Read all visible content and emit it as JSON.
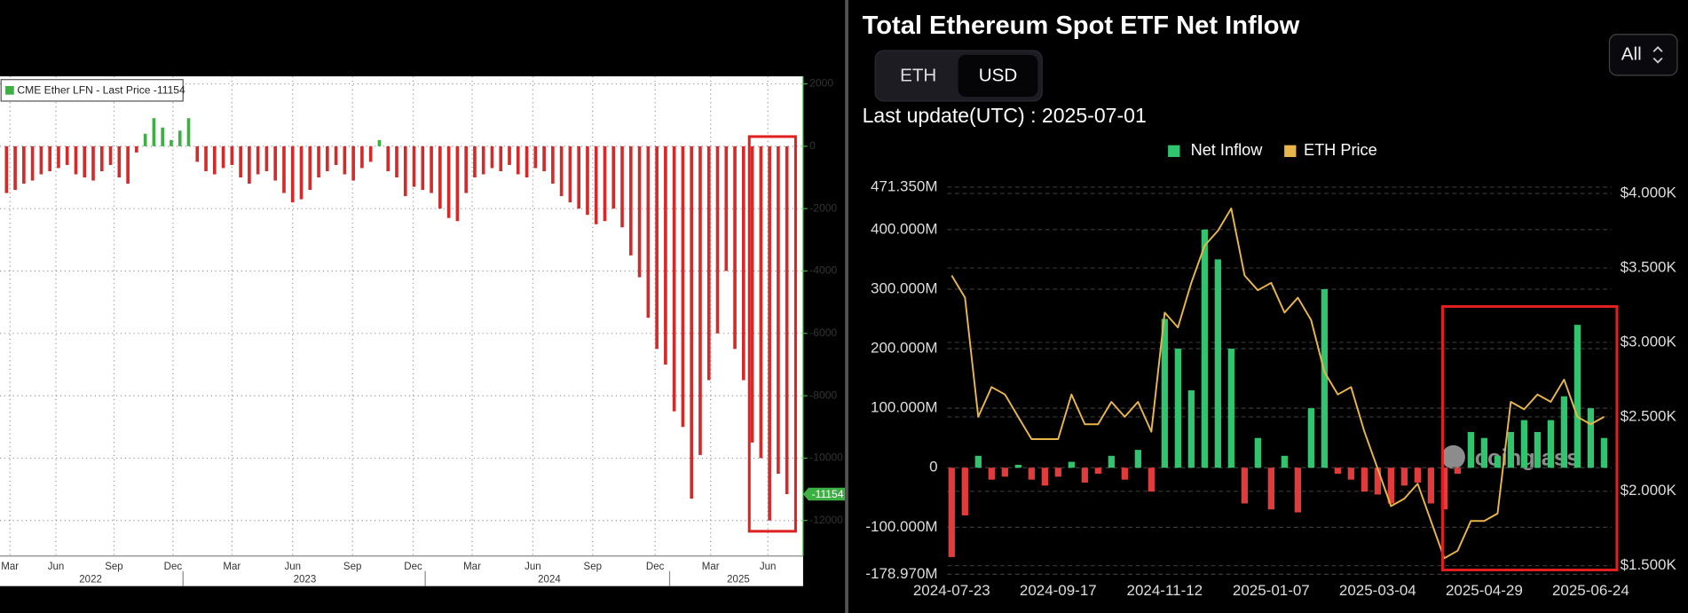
{
  "chart_data": [
    {
      "type": "bar",
      "legend": "CME Ether LFN - Last Price -11154",
      "values": [
        -1500,
        -1400,
        -1200,
        -1100,
        -900,
        -800,
        -700,
        -600,
        -900,
        -1000,
        -1100,
        -800,
        -600,
        -1000,
        -1200,
        -200,
        400,
        900,
        600,
        200,
        500,
        900,
        -500,
        -800,
        -900,
        -700,
        -600,
        -1000,
        -1200,
        -900,
        -800,
        -1100,
        -1500,
        -1800,
        -1700,
        -1400,
        -1000,
        -800,
        -600,
        -900,
        -1100,
        -700,
        -500,
        200,
        -800,
        -1000,
        -1600,
        -1300,
        -1400,
        -1500,
        -2000,
        -2300,
        -2400,
        -1500,
        -1000,
        -900,
        -700,
        -800,
        -600,
        -900,
        -1000,
        -700,
        -800,
        -1200,
        -1600,
        -1800,
        -2000,
        -2200,
        -2500,
        -2400,
        -2000,
        -2600,
        -3500,
        -4200,
        -5500,
        -6500,
        -7000,
        -8500,
        -9000,
        -11300,
        -9900,
        -7500,
        -6000,
        -4000,
        -6500,
        -7500,
        -9500,
        -10000,
        -12000,
        -10500,
        -11154
      ],
      "color": "#d42a2a",
      "positive_color": "#3cb043",
      "ylim": [
        -13138,
        2241
      ],
      "yticks": [
        2000,
        0,
        -2000,
        -4000,
        -6000,
        -8000,
        -10000,
        -12000
      ],
      "xlim": [
        -0.5,
        90.5
      ],
      "xticks": [
        {
          "value": 0.4,
          "label": "Mar"
        },
        {
          "value": 5.7,
          "label": "Jun"
        },
        {
          "value": 12.4,
          "label": "Sep"
        },
        {
          "value": 19.2,
          "label": "Dec"
        },
        {
          "value": 26,
          "label": "Mar"
        },
        {
          "value": 33,
          "label": "Jun"
        },
        {
          "value": 39.9,
          "label": "Sep"
        },
        {
          "value": 46.9,
          "label": "Dec"
        },
        {
          "value": 53.7,
          "label": "Mar"
        },
        {
          "value": 60.7,
          "label": "Jun"
        },
        {
          "value": 67.6,
          "label": "Sep"
        },
        {
          "value": 74.8,
          "label": "Dec"
        },
        {
          "value": 81.2,
          "label": "Mar"
        },
        {
          "value": 87.8,
          "label": "Jun"
        }
      ],
      "year_ticks": [
        {
          "value": 9.7,
          "label": "2022"
        },
        {
          "value": 34.4,
          "label": "2023"
        },
        {
          "value": 62.6,
          "label": "2024"
        },
        {
          "value": 84.4,
          "label": "2025"
        }
      ],
      "grid": true
    },
    {
      "type": "bar_line",
      "title": "Total Ethereum Spot ETF Net Inflow",
      "toggle": [
        "ETH",
        "USD"
      ],
      "range_selector": "All",
      "update": "Last update(UTC) : 2025-07-01",
      "watermark": "coinglass",
      "x": [
        "2024-07-23",
        "2024-07-30",
        "2024-08-06",
        "2024-08-13",
        "2024-08-20",
        "2024-08-27",
        "2024-09-03",
        "2024-09-10",
        "2024-09-17",
        "2024-09-24",
        "2024-10-01",
        "2024-10-08",
        "2024-10-15",
        "2024-10-22",
        "2024-10-29",
        "2024-11-05",
        "2024-11-12",
        "2024-11-19",
        "2024-11-26",
        "2024-12-03",
        "2024-12-10",
        "2024-12-17",
        "2024-12-24",
        "2024-12-31",
        "2025-01-07",
        "2025-01-14",
        "2025-01-21",
        "2025-01-28",
        "2025-02-04",
        "2025-02-11",
        "2025-02-18",
        "2025-02-25",
        "2025-03-04",
        "2025-03-11",
        "2025-03-18",
        "2025-03-25",
        "2025-04-01",
        "2025-04-08",
        "2025-04-15",
        "2025-04-22",
        "2025-04-29",
        "2025-05-06",
        "2025-05-13",
        "2025-05-20",
        "2025-05-27",
        "2025-06-03",
        "2025-06-10",
        "2025-06-17",
        "2025-06-24",
        "2025-07-01"
      ],
      "series": [
        {
          "name": "Net Inflow",
          "color": "#2fc46d",
          "negative_color": "#e23b3b",
          "values": [
            -150,
            -80,
            20,
            -20,
            -15,
            5,
            -20,
            -30,
            -15,
            10,
            -25,
            -10,
            20,
            -20,
            30,
            -40,
            250,
            200,
            130,
            400,
            350,
            200,
            -60,
            50,
            -70,
            20,
            -75,
            100,
            300,
            -10,
            -20,
            -40,
            -45,
            -60,
            -30,
            -25,
            -60,
            -70,
            -10,
            60,
            50,
            20,
            60,
            80,
            60,
            80,
            120,
            240,
            100,
            50
          ]
        },
        {
          "name": "ETH Price",
          "color": "#e8b64a",
          "axis": "y2",
          "values": [
            3.45,
            3.3,
            2.5,
            2.7,
            2.65,
            2.5,
            2.35,
            2.35,
            2.35,
            2.65,
            2.45,
            2.45,
            2.6,
            2.5,
            2.6,
            2.4,
            3.2,
            3.1,
            3.4,
            3.65,
            3.75,
            3.9,
            3.45,
            3.35,
            3.4,
            3.2,
            3.3,
            3.15,
            2.8,
            2.65,
            2.7,
            2.4,
            2.15,
            1.9,
            1.95,
            2.05,
            1.8,
            1.55,
            1.6,
            1.8,
            1.8,
            1.85,
            2.6,
            2.55,
            2.65,
            2.6,
            2.75,
            2.5,
            2.45,
            2.5
          ]
        }
      ],
      "ylim": [
        -178.97,
        471.35
      ],
      "yticks": [
        {
          "value": 471.35,
          "label": "471.350M"
        },
        {
          "value": 400,
          "label": "400.000M"
        },
        {
          "value": 300,
          "label": "300.000M"
        },
        {
          "value": 200,
          "label": "200.000M"
        },
        {
          "value": 100,
          "label": "100.000M"
        },
        0,
        {
          "value": -100,
          "label": "-100.000M"
        },
        {
          "value": -178.97,
          "label": "-178.970M"
        }
      ],
      "y2lim": [
        1.442,
        4.043
      ],
      "y2ticks": [
        {
          "value": 4,
          "label": "$4.000K"
        },
        {
          "value": 3.5,
          "label": "$3.500K"
        },
        {
          "value": 3,
          "label": "$3.000K"
        },
        {
          "value": 2.5,
          "label": "$2.500K"
        },
        {
          "value": 2,
          "label": "$2.000K"
        },
        {
          "value": 1.5,
          "label": "$1.500K"
        }
      ],
      "xticks": [
        "2024-07-23",
        "2024-09-17",
        "2024-11-12",
        "2025-01-07",
        "2025-03-04",
        "2025-04-29",
        "2025-06-24"
      ],
      "grid": true
    }
  ]
}
